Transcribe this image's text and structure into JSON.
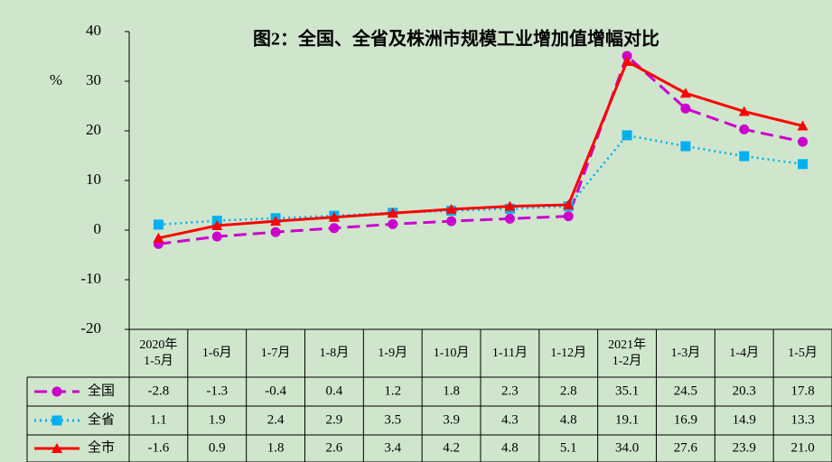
{
  "chart_data": {
    "type": "line",
    "title": "图2：全国、全省及株洲市规模工业增加值增幅对比",
    "y_label": "%",
    "categories": [
      "2020年\n1-5月",
      "1-6月",
      "1-7月",
      "1-8月",
      "1-9月",
      "1-10月",
      "1-11月",
      "1-12月",
      "2021年\n1-2月",
      "1-3月",
      "1-4月",
      "1-5月"
    ],
    "series": [
      {
        "name": "全国",
        "color": "#cc00cc",
        "marker": "circle",
        "dash": "dashed",
        "values": [
          -2.8,
          -1.3,
          -0.4,
          0.4,
          1.2,
          1.8,
          2.3,
          2.8,
          35.1,
          24.5,
          20.3,
          17.8
        ]
      },
      {
        "name": "全省",
        "color": "#00b0f0",
        "marker": "square",
        "dash": "dotted",
        "values": [
          1.1,
          1.9,
          2.4,
          2.9,
          3.5,
          3.9,
          4.3,
          4.8,
          19.1,
          16.9,
          14.9,
          13.3
        ]
      },
      {
        "name": "全市",
        "color": "#ff0000",
        "marker": "triangle",
        "dash": "solid",
        "values": [
          -1.6,
          0.9,
          1.8,
          2.6,
          3.4,
          4.2,
          4.8,
          5.1,
          34,
          27.6,
          23.9,
          21
        ],
        "value_labels": [
          "-1.6",
          "0.9",
          "1.8",
          "2.6",
          "3.4",
          "4.2",
          "4.8",
          "5.1",
          "34.0",
          "27.6",
          "23.9",
          "21.0"
        ]
      }
    ],
    "ylim": [
      -20,
      40
    ],
    "yticks": [
      -20,
      -10,
      0,
      10,
      20,
      30,
      40
    ],
    "grid": false,
    "data_table": true
  }
}
